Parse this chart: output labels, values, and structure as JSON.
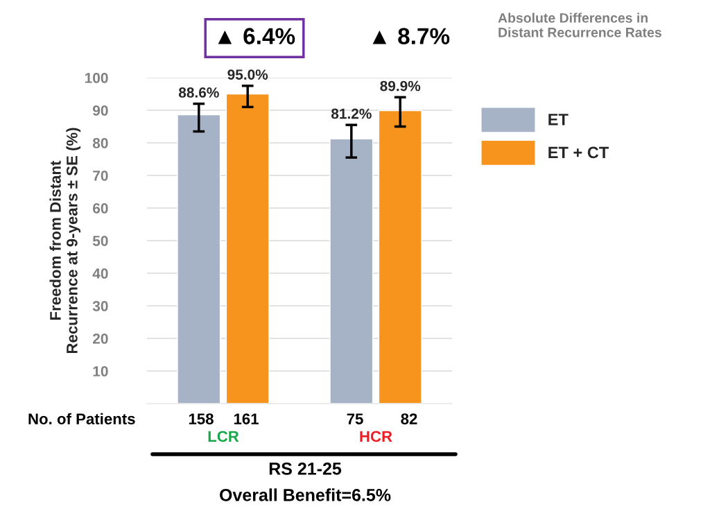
{
  "chart_data": {
    "type": "bar",
    "categories": [
      "LCR",
      "HCR"
    ],
    "series": [
      {
        "name": "ET",
        "color": "#a6b2c6",
        "values": [
          88.6,
          81.2
        ],
        "errors": [
          [
            83.5,
            92.0
          ],
          [
            75.5,
            85.5
          ]
        ],
        "value_labels": [
          "88.6%",
          "81.2%"
        ]
      },
      {
        "name": "ET + CT",
        "color": "#f7941d",
        "values": [
          95.0,
          89.9
        ],
        "errors": [
          [
            91.0,
            97.5
          ],
          [
            85.0,
            94.0
          ]
        ],
        "value_labels": [
          "95.0%",
          "89.9%"
        ]
      }
    ],
    "ylabel": "Freedom from Distant\nRecurrence at 9-years ± SE (%)",
    "ylim": [
      0,
      100
    ],
    "yticks": [
      10,
      20,
      30,
      40,
      50,
      60,
      70,
      80,
      90,
      100
    ],
    "grid": "y",
    "legend": "right",
    "annotations": [
      "▲ 6.4%",
      "▲ 8.7%",
      "Absolute Differences in\nDistant Recurrence Rates",
      "No. of Patients",
      "158",
      "161",
      "75",
      "82",
      "RS 21-25",
      "Overall Benefit=6.5%"
    ]
  }
}
